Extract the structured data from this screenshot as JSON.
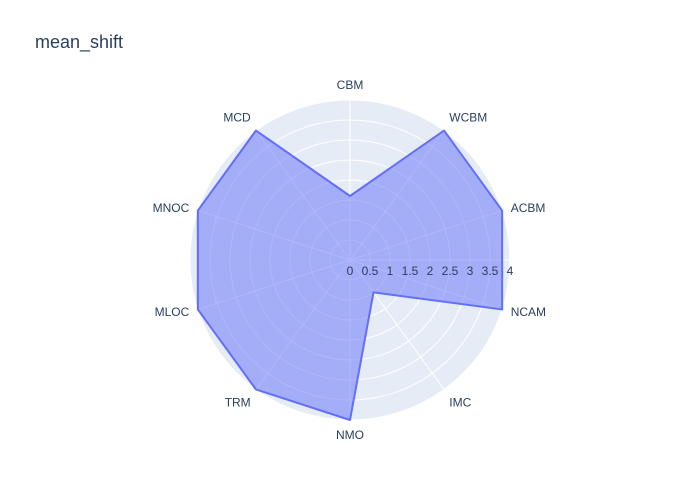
{
  "chart_data": {
    "type": "radar",
    "title": "mean_shift",
    "categories": [
      "CBM",
      "WCBM",
      "ACBM",
      "NCAM",
      "IMC",
      "NMO",
      "TRM",
      "MLOC",
      "MNOC",
      "MCD"
    ],
    "values": [
      1.6,
      4.0,
      4.0,
      4.0,
      1.0,
      4.0,
      4.0,
      4.0,
      4.0,
      4.0
    ],
    "radial_range": [
      0,
      4
    ],
    "radial_ticks": [
      "0",
      "0.5",
      "1",
      "1.5",
      "2",
      "2.5",
      "3",
      "3.5",
      "4"
    ],
    "colors": {
      "fill": "#636efa",
      "line": "#636efa",
      "polar_bg": "#e5ecf6",
      "grid": "#ffffff"
    }
  }
}
